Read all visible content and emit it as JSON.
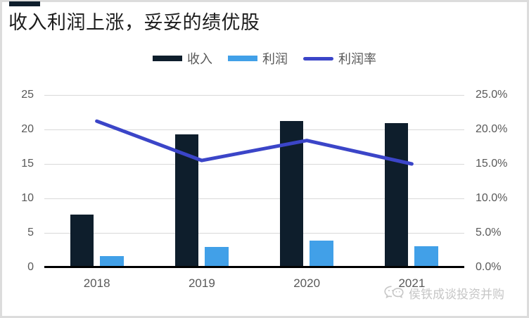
{
  "header": {
    "title": "收入利润上涨，妥妥的绩优股"
  },
  "legend": [
    {
      "label": "收入",
      "type": "bar",
      "color": "#0e1e2c"
    },
    {
      "label": "利润",
      "type": "bar",
      "color": "#41a0e8"
    },
    {
      "label": "利润率",
      "type": "line",
      "color": "#3b45c8"
    }
  ],
  "chart_data": {
    "type": "bar",
    "subtype": "bars-with-line-overlay",
    "title": "收入利润上涨，妥妥的绩优股",
    "categories": [
      "2018",
      "2019",
      "2020",
      "2021"
    ],
    "series": [
      {
        "name": "收入",
        "type": "bar",
        "axis": "left",
        "color": "#0e1e2c",
        "values": [
          7.7,
          19.3,
          21.2,
          20.9
        ]
      },
      {
        "name": "利润",
        "type": "bar",
        "axis": "left",
        "color": "#41a0e8",
        "values": [
          1.6,
          3.0,
          3.9,
          3.1
        ]
      },
      {
        "name": "利润率",
        "type": "line",
        "axis": "right",
        "color": "#3b45c8",
        "values_pct": [
          21.2,
          15.5,
          18.4,
          15.0
        ]
      }
    ],
    "left_axis": {
      "range": [
        0,
        25
      ],
      "tick_values": [
        0,
        5,
        10,
        15,
        20,
        25
      ],
      "tick_labels": [
        "0",
        "5",
        "10",
        "15",
        "20",
        "25"
      ]
    },
    "right_axis": {
      "range_pct": [
        0,
        25
      ],
      "tick_values": [
        0,
        5,
        10,
        15,
        20,
        25
      ],
      "tick_labels": [
        "0.0%",
        "5.0%",
        "10.0%",
        "15.0%",
        "20.0%",
        "25.0%"
      ]
    },
    "grid": true,
    "legend_position": "top"
  },
  "colors": {
    "revenue_bar": "#0e1e2c",
    "profit_bar": "#41a0e8",
    "margin_line": "#3b45c8",
    "gridline": "#d9d9d9",
    "axis_text": "#595959",
    "watermark": "#c6c6c6"
  },
  "watermark": {
    "text": "侯铁成谈投资并购",
    "icon": "wechat-icon"
  }
}
